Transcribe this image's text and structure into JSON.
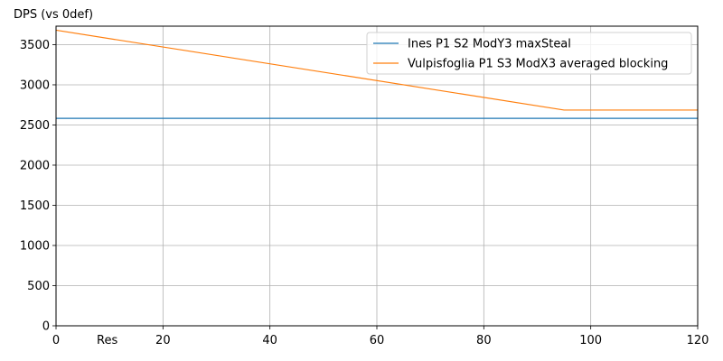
{
  "chart_data": {
    "type": "line",
    "xlabel": "Res",
    "ylabel": "DPS (vs 0def)",
    "xlim": [
      0,
      120
    ],
    "ylim": [
      0,
      3730
    ],
    "xticks": [
      0,
      20,
      40,
      60,
      80,
      100,
      120
    ],
    "yticks": [
      0,
      500,
      1000,
      1500,
      2000,
      2500,
      3000,
      3500
    ],
    "grid": true,
    "legend": "top-right",
    "series": [
      {
        "name": "Ines P1 S2 ModY3 maxSteal",
        "color": "#1f77b4",
        "points": [
          [
            0,
            2583
          ],
          [
            120,
            2583
          ]
        ]
      },
      {
        "name": "Vulpisfoglia P1 S3 ModX3 averaged blocking",
        "color": "#ff7f0e",
        "points": [
          [
            0,
            3680
          ],
          [
            95,
            2686
          ],
          [
            120,
            2686
          ]
        ]
      }
    ]
  }
}
